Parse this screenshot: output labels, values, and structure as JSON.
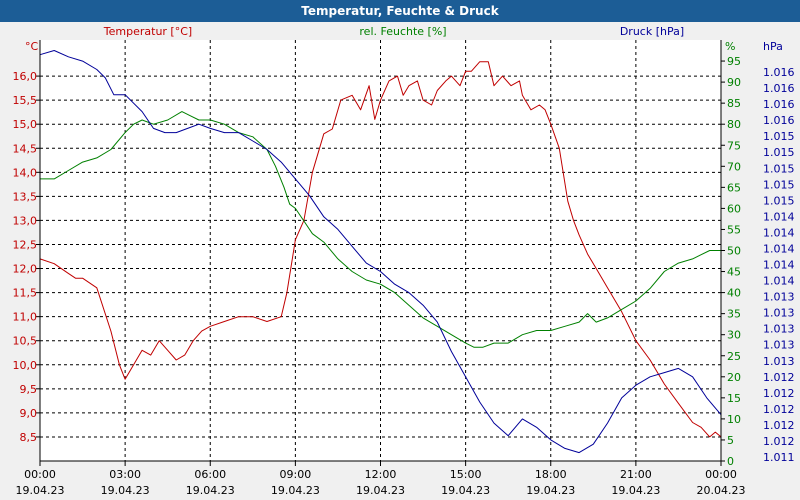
{
  "window": {
    "title": "Temperatur, Feuchte & Druck"
  },
  "chart_data": {
    "type": "line",
    "title": "Temperatur, Feuchte & Druck",
    "colors": {
      "temp": "#c00000",
      "hum": "#008000",
      "press": "#000099"
    },
    "x_ticks": [
      {
        "time": "00:00",
        "date": "19.04.23"
      },
      {
        "time": "03:00",
        "date": "19.04.23"
      },
      {
        "time": "06:00",
        "date": "19.04.23"
      },
      {
        "time": "09:00",
        "date": "19.04.23"
      },
      {
        "time": "12:00",
        "date": "19.04.23"
      },
      {
        "time": "15:00",
        "date": "19.04.23"
      },
      {
        "time": "18:00",
        "date": "19.04.23"
      },
      {
        "time": "21:00",
        "date": "19.04.23"
      },
      {
        "time": "00:00",
        "date": "20.04.23"
      }
    ],
    "temp_axis": {
      "unit": "°C",
      "label": "Temperatur [°C]",
      "min": 8.0,
      "max": 16.75,
      "tick_values": [
        8.5,
        9.0,
        9.5,
        10.0,
        10.5,
        11.0,
        11.5,
        12.0,
        12.5,
        13.0,
        13.5,
        14.0,
        14.5,
        15.0,
        15.5,
        16.0
      ],
      "tick_labels": [
        "8,5",
        "9,0",
        "9,5",
        "10,0",
        "10,5",
        "11,0",
        "11,5",
        "12,0",
        "12,5",
        "13,0",
        "13,5",
        "14,0",
        "14,5",
        "15,0",
        "15,5",
        "16,0"
      ]
    },
    "hum_axis": {
      "unit": "%",
      "label": "rel. Feuchte [%]",
      "min": 0,
      "max": 100,
      "tick_values": [
        0,
        5,
        10,
        15,
        20,
        25,
        30,
        35,
        40,
        45,
        50,
        55,
        60,
        65,
        70,
        75,
        80,
        85,
        90,
        95
      ],
      "tick_labels": [
        "0",
        "5",
        "10",
        "15",
        "20",
        "25",
        "30",
        "35",
        "40",
        "45",
        "50",
        "55",
        "60",
        "65",
        "70",
        "75",
        "80",
        "85",
        "90",
        "95"
      ]
    },
    "press_axis": {
      "unit": "hPa",
      "label": "Druck [hPa]",
      "tick_labels": [
        "1.011",
        "1.012",
        "1.012",
        "1.012",
        "1.012",
        "1.012",
        "1.013",
        "1.013",
        "1.013",
        "1.013",
        "1.013",
        "1.014",
        "1.014",
        "1.014",
        "1.014",
        "1.014",
        "1.015",
        "1.015",
        "1.015",
        "1.015",
        "1.015",
        "1.016",
        "1.016",
        "1.016",
        "1.016"
      ]
    },
    "series": [
      {
        "name": "Temperatur [°C]",
        "key": "temp",
        "x_hours": [
          0,
          0.5,
          1,
          1.25,
          1.5,
          2,
          2.5,
          2.8,
          3,
          3.3,
          3.6,
          3.9,
          4.2,
          4.5,
          4.8,
          5.1,
          5.4,
          5.7,
          6,
          6.5,
          7,
          7.5,
          8,
          8.5,
          8.7,
          9,
          9.3,
          9.6,
          10,
          10.3,
          10.6,
          11,
          11.3,
          11.6,
          11.8,
          12,
          12.3,
          12.6,
          12.8,
          13,
          13.3,
          13.5,
          13.8,
          14,
          14.3,
          14.5,
          14.8,
          15,
          15.2,
          15.5,
          15.8,
          16,
          16.3,
          16.6,
          16.9,
          17,
          17.3,
          17.6,
          17.8,
          18,
          18.3,
          18.6,
          18.8,
          19,
          19.3,
          19.6,
          20,
          20.5,
          21,
          21.5,
          22,
          22.5,
          23,
          23.3,
          23.6,
          23.8,
          24
        ],
        "values": [
          12.2,
          12.1,
          11.9,
          11.8,
          11.8,
          11.6,
          10.7,
          10.0,
          9.7,
          10.0,
          10.3,
          10.2,
          10.5,
          10.3,
          10.1,
          10.2,
          10.5,
          10.7,
          10.8,
          10.9,
          11.0,
          11.0,
          10.9,
          11.0,
          11.5,
          12.6,
          13.0,
          14.0,
          14.8,
          14.9,
          15.5,
          15.6,
          15.3,
          15.8,
          15.1,
          15.5,
          15.9,
          16.0,
          15.6,
          15.8,
          15.9,
          15.5,
          15.4,
          15.7,
          15.9,
          16.0,
          15.8,
          16.1,
          16.1,
          16.3,
          16.3,
          15.8,
          16.0,
          15.8,
          15.9,
          15.6,
          15.3,
          15.4,
          15.3,
          15.0,
          14.5,
          13.4,
          13.0,
          12.7,
          12.3,
          12.0,
          11.6,
          11.1,
          10.5,
          10.1,
          9.6,
          9.2,
          8.8,
          8.7,
          8.5,
          8.6,
          8.5
        ]
      },
      {
        "name": "rel. Feuchte [%]",
        "key": "hum",
        "x_hours": [
          0,
          0.5,
          1,
          1.5,
          2,
          2.5,
          3,
          3.3,
          3.6,
          4,
          4.5,
          5,
          5.3,
          5.6,
          6,
          6.5,
          7,
          7.5,
          8,
          8.3,
          8.6,
          8.8,
          9,
          9.3,
          9.6,
          10,
          10.5,
          11,
          11.5,
          12,
          12.5,
          13,
          13.5,
          14,
          14.5,
          15,
          15.3,
          15.6,
          16,
          16.5,
          17,
          17.5,
          18,
          18.5,
          19,
          19.3,
          19.6,
          20,
          20.5,
          21,
          21.5,
          22,
          22.5,
          23,
          23.3,
          23.6,
          24
        ],
        "values": [
          67,
          67,
          69,
          71,
          72,
          74,
          78,
          80,
          81,
          80,
          81,
          83,
          82,
          81,
          81,
          80,
          78,
          77,
          74,
          70,
          65,
          61,
          60,
          57,
          54,
          52,
          48,
          45,
          43,
          42,
          40,
          37,
          34,
          32,
          30,
          28,
          27,
          27,
          28,
          28,
          30,
          31,
          31,
          32,
          33,
          35,
          33,
          34,
          36,
          38,
          41,
          45,
          47,
          48,
          49,
          50,
          50
        ]
      },
      {
        "name": "Druck [hPa]",
        "key": "press",
        "press_units": true,
        "x_hours": [
          0,
          0.5,
          1,
          1.5,
          2,
          2.3,
          2.6,
          3,
          3.3,
          3.6,
          4,
          4.4,
          4.8,
          5.2,
          5.6,
          6,
          6.5,
          7,
          7.5,
          8,
          8.5,
          9,
          9.5,
          10,
          10.5,
          11,
          11.5,
          12,
          12.5,
          13,
          13.5,
          14,
          14.5,
          15,
          15.5,
          16,
          16.5,
          17,
          17.5,
          18,
          18.5,
          19,
          19.5,
          20,
          20.5,
          21,
          21.5,
          22,
          22.5,
          23,
          23.5,
          24
        ],
        "values": [
          96.5,
          97.5,
          96,
          95,
          93,
          91,
          87,
          87,
          85,
          83,
          79,
          78,
          78,
          79,
          80,
          79,
          78,
          78,
          76,
          74,
          71,
          67,
          63,
          58,
          55,
          51,
          47,
          45,
          42,
          40,
          37,
          33,
          26,
          20,
          14,
          9,
          6,
          10,
          8,
          5,
          3,
          2,
          4,
          9,
          15,
          18,
          20,
          21,
          22,
          20,
          15,
          11
        ]
      }
    ]
  }
}
